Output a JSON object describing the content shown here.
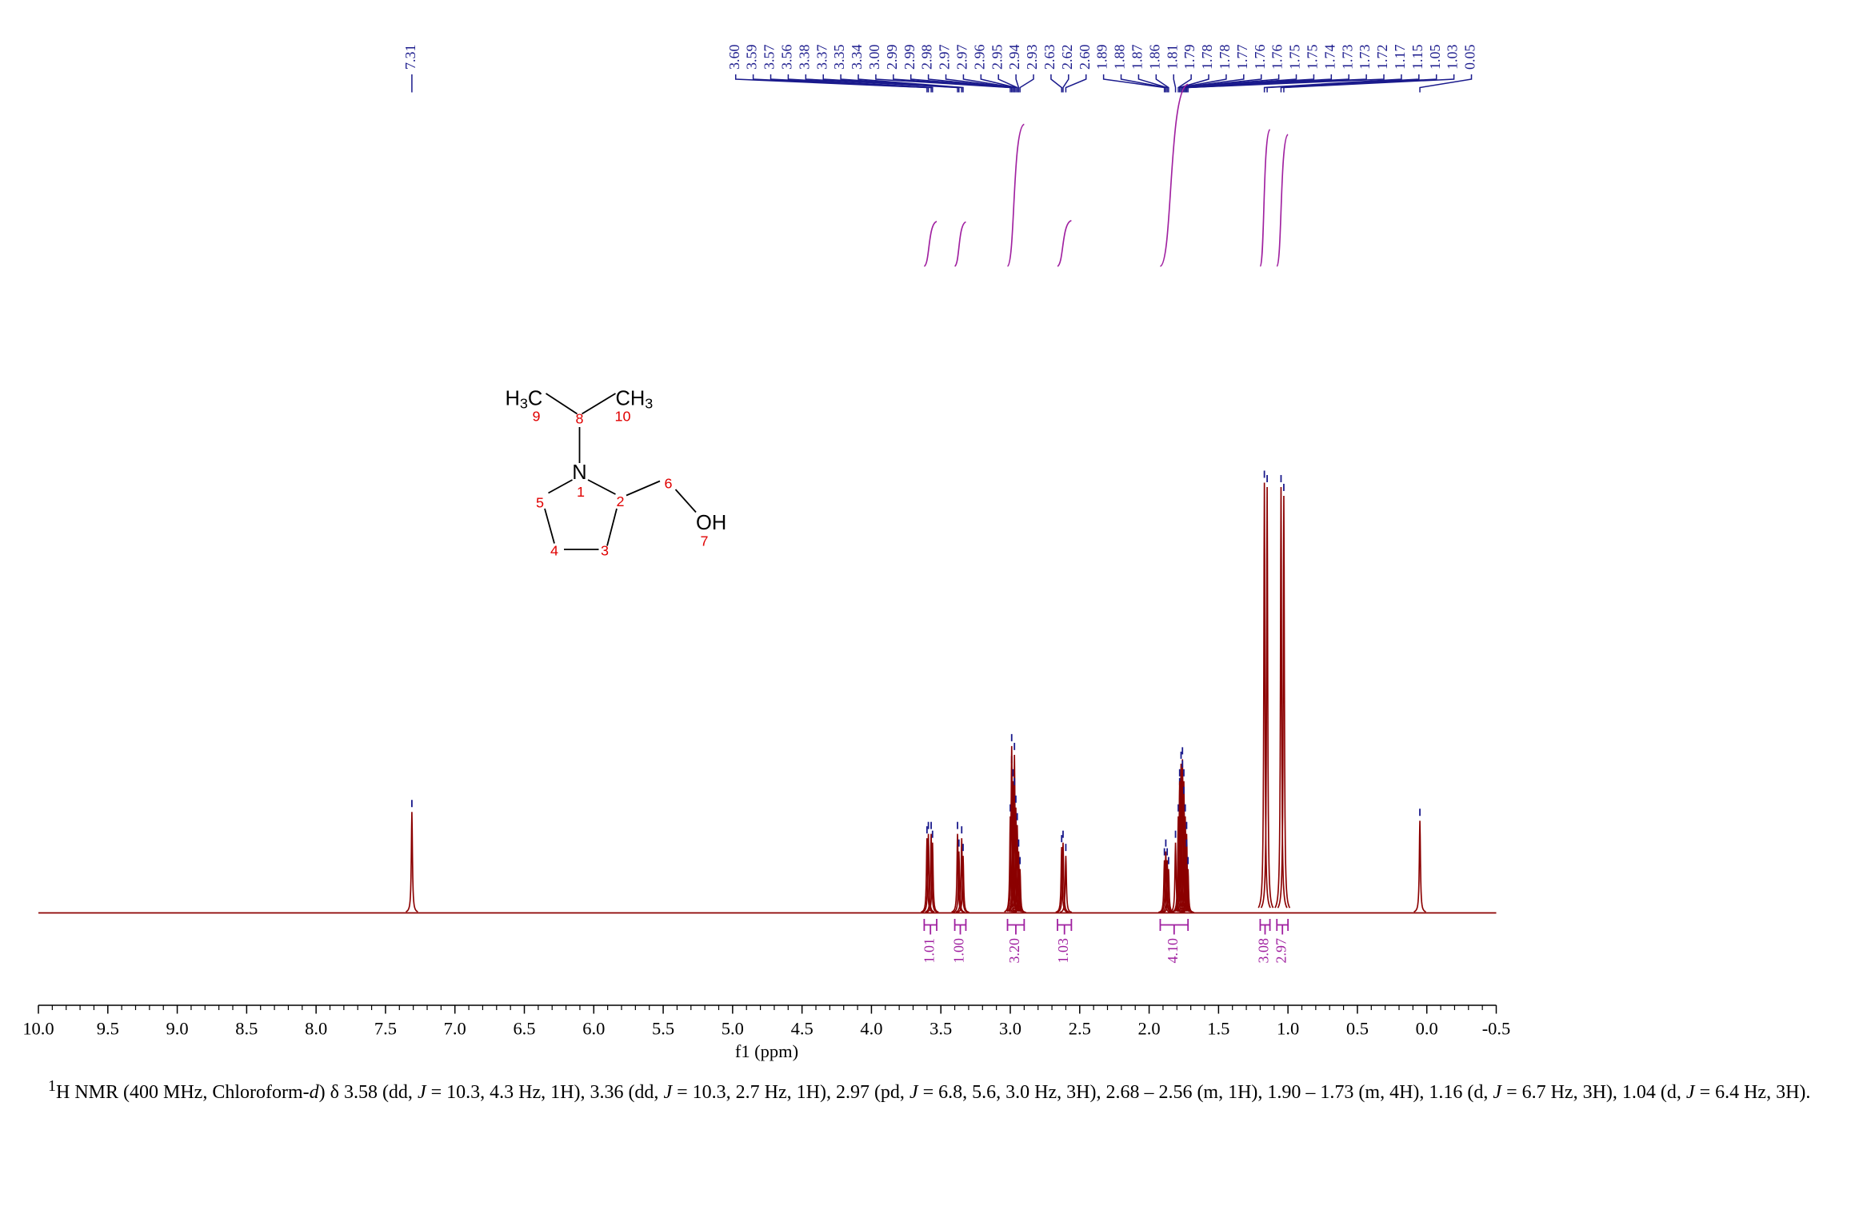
{
  "chart_data": {
    "type": "nmr",
    "x_label": "f1 (ppm)",
    "xlim": [
      10.0,
      -0.5
    ],
    "xticks": [
      {
        "value": 10,
        "label": "10.0"
      },
      9.5,
      {
        "value": 9,
        "label": "9.0"
      },
      8.5,
      {
        "value": 8,
        "label": "8.0"
      },
      7.5,
      {
        "value": 7,
        "label": "7.0"
      },
      6.5,
      {
        "value": 6,
        "label": "6.0"
      },
      5.5,
      {
        "value": 5,
        "label": "5.0"
      },
      4.5,
      {
        "value": 4,
        "label": "4.0"
      },
      3.5,
      {
        "value": 3,
        "label": "3.0"
      },
      2.5,
      {
        "value": 2,
        "label": "2.0"
      },
      1.5,
      {
        "value": 1,
        "label": "1.0"
      },
      0.5,
      {
        "value": 0,
        "label": "0.0"
      },
      -0.5
    ],
    "ylim": [
      0,
      100
    ],
    "color": "#8b0000",
    "label_color": "#1a1a8c",
    "integral_color": "#a020a0",
    "peaks": {
      "x": [
        7.31,
        {
          "value": 3.6,
          "label": "3.60"
        },
        3.59,
        3.57,
        3.56,
        3.38,
        3.37,
        3.35,
        3.34,
        {
          "value": 3.0,
          "label": "3.00"
        },
        2.99,
        2.99,
        2.98,
        2.97,
        2.97,
        2.96,
        2.95,
        2.94,
        2.93,
        2.63,
        2.62,
        {
          "value": 2.6,
          "label": "2.60"
        },
        1.89,
        1.88,
        1.87,
        1.86,
        1.81,
        1.79,
        1.78,
        1.78,
        1.77,
        1.76,
        1.76,
        1.75,
        1.75,
        1.74,
        1.73,
        1.73,
        1.72,
        1.17,
        1.15,
        1.05,
        1.03,
        0.05
      ],
      "values": [
        23,
        17,
        18,
        18,
        16,
        18,
        14,
        17,
        13,
        22,
        33,
        38,
        30,
        36,
        28,
        24,
        20,
        14,
        10,
        15,
        16,
        13,
        12,
        14,
        12,
        10,
        16,
        22,
        28,
        30,
        34,
        35,
        32,
        30,
        26,
        22,
        18,
        14,
        10,
        98,
        97,
        97,
        95,
        21
      ]
    },
    "integrals": {
      "ranges": [
        [
          3.62,
          3.53
        ],
        [
          3.4,
          3.32
        ],
        [
          3.02,
          2.9
        ],
        [
          2.66,
          2.56
        ],
        [
          1.92,
          1.72
        ],
        [
          1.2,
          1.13
        ],
        [
          1.08,
          1.0
        ]
      ],
      "values": [
        1.01,
        1.0,
        3.2,
        1.03,
        4.1,
        3.08,
        2.97
      ],
      "value_labels": [
        "1.01",
        "1.00",
        "3.20",
        "1.03",
        "4.10",
        "3.08",
        "2.97"
      ]
    }
  },
  "structure": {
    "h3c": [
      "H",
      "3",
      "C"
    ],
    "ch3": [
      "CH",
      "3"
    ],
    "n": "N",
    "oh": "OH",
    "numbers": [
      1,
      2,
      3,
      4,
      5,
      6,
      7,
      8,
      9,
      10
    ]
  },
  "caption": {
    "sup": "1",
    "parts": [
      "H NMR (400 MHz, Chloroform-",
      "d",
      ") δ 3.58 (dd, ",
      "J",
      " = 10.3, 4.3 Hz, 1H), 3.36 (dd, ",
      "J",
      " = 10.3, 2.7 Hz, 1H), 2.97 (pd, ",
      "J",
      " = 6.8, 5.6, 3.0 Hz, 3H), 2.68 – 2.56 (m, 1H), 1.90 – 1.73 (m, 4H), 1.16 (d, ",
      "J",
      " = 6.7 Hz, 3H), 1.04 (d, ",
      "J",
      " = 6.4 Hz, 3H)."
    ]
  }
}
